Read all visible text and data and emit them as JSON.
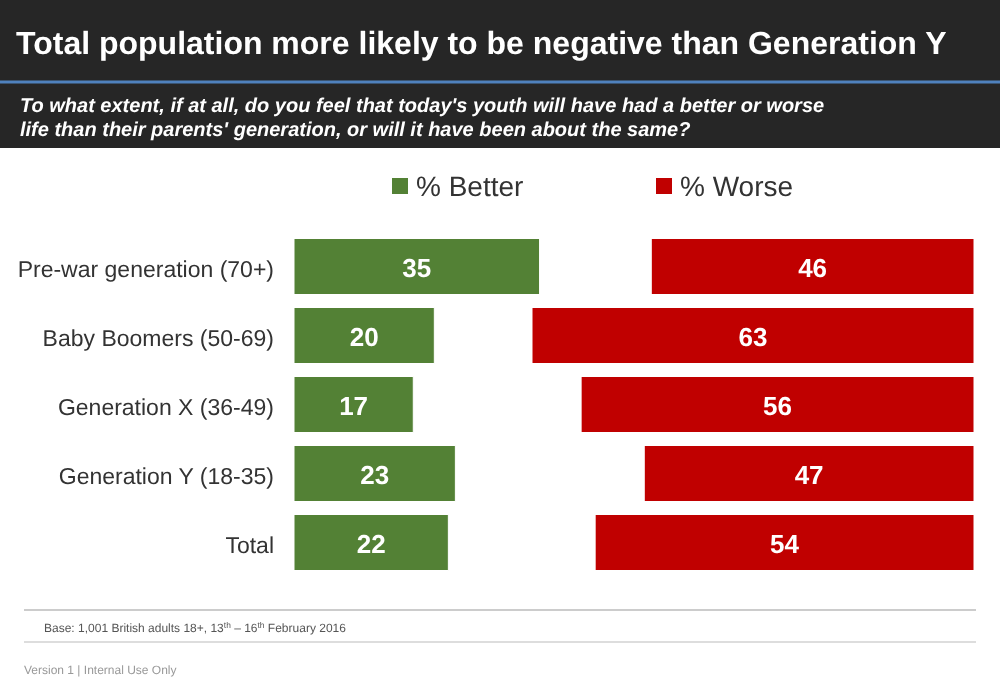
{
  "chart_data": [
    {
      "type": "bar",
      "orientation": "horizontal",
      "title": "Total population more likely to be negative than Generation Y",
      "subtitle": "To what extent, if at all, do you feel that today's youth will have had a better or worse life than their parents' generation, or will it have been about the same?",
      "categories": [
        "Pre-war generation (70+)",
        "Baby Boomers (50-69)",
        "Generation X (36-49)",
        "Generation Y (18-35)",
        "Total"
      ],
      "series": [
        {
          "name": "% Better",
          "color": "#538135",
          "values": [
            35,
            20,
            17,
            23,
            22
          ]
        }
      ],
      "data_labels": true,
      "legend": "top",
      "annotations": [
        "Base: 1,001 British adults 18+, 13$^{th}$ – 16$^{th}$ February 2016",
        "Version 1 | Internal Use Only"
      ]
    },
    {
      "type": "bar",
      "orientation": "horizontal",
      "categories": [
        null,
        null,
        null,
        null,
        null
      ],
      "series": [
        {
          "name": "% Worse",
          "color": "#c00000",
          "values": [
            46,
            63,
            56,
            47,
            54
          ]
        }
      ],
      "data_labels": true,
      "legend": "top"
    }
  ]
}
